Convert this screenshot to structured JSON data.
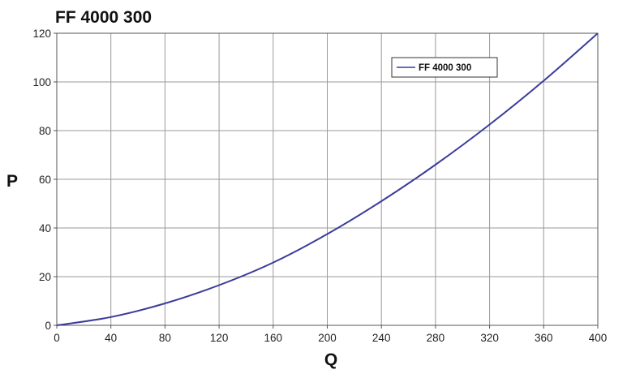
{
  "chart_data": {
    "type": "line",
    "title": "FF 4000 300",
    "xlabel": "Q",
    "ylabel": "P",
    "xlim": [
      0,
      400
    ],
    "ylim": [
      0,
      120
    ],
    "xticks": [
      0,
      40,
      80,
      120,
      160,
      200,
      240,
      280,
      320,
      360,
      400
    ],
    "yticks": [
      0,
      20,
      40,
      60,
      80,
      100,
      120
    ],
    "grid": true,
    "legend_position": "top-right",
    "series": [
      {
        "name": "FF 4000 300",
        "color": "#3a3c9a",
        "x": [
          0,
          40,
          80,
          120,
          160,
          200,
          240,
          280,
          320,
          360,
          400
        ],
        "y": [
          0,
          3.4,
          9,
          16.5,
          25.8,
          37.5,
          51,
          66,
          82.5,
          100.5,
          120
        ]
      }
    ]
  }
}
